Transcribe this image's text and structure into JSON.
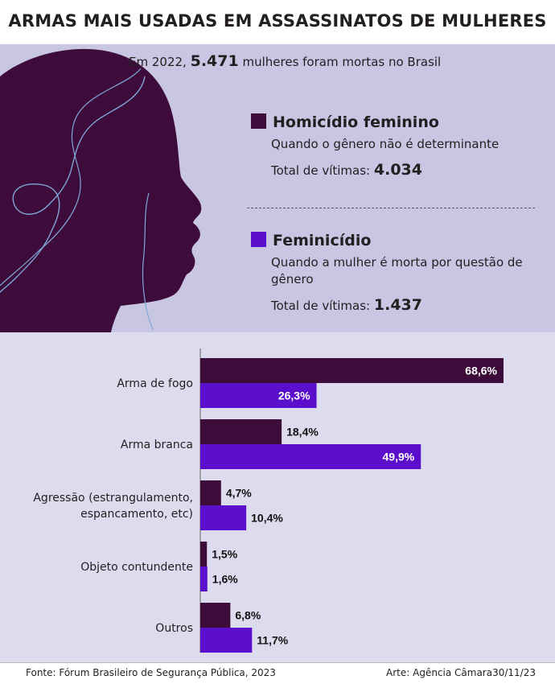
{
  "title": "ARMAS MAIS USADAS EM ASSASSINATOS DE MULHERES",
  "intro": {
    "prefix": "Em 2022,",
    "number": "5.471",
    "suffix": "mulheres foram mortas no Brasil"
  },
  "categories_info": [
    {
      "name": "Homicídio feminino",
      "desc": "Quando o gênero não é determinante",
      "total_label": "Total de vítimas:",
      "total": "4.034",
      "color": "#3d0c3a"
    },
    {
      "name": "Feminicídio",
      "desc": "Quando a mulher é morta por questão de gênero",
      "total_label": "Total de vítimas:",
      "total": "1.437",
      "color": "#5b0fcc"
    }
  ],
  "chart_data": {
    "type": "bar",
    "orientation": "horizontal",
    "categories": [
      "Arma de fogo",
      "Arma branca",
      "Agressão (estrangulamento,\nespancamento, etc)",
      "Objeto contundente",
      "Outros"
    ],
    "series": [
      {
        "name": "Homicídio feminino",
        "values": [
          68.6,
          18.4,
          4.7,
          1.5,
          6.8
        ],
        "labels": [
          "68,6%",
          "18,4%",
          "4,7%",
          "1,5%",
          "6,8%"
        ],
        "color": "#3d0c3a"
      },
      {
        "name": "Feminicídio",
        "values": [
          26.3,
          49.9,
          10.4,
          1.6,
          11.7
        ],
        "labels": [
          "26,3%",
          "49,9%",
          "10,4%",
          "1,6%",
          "11,7%"
        ],
        "color": "#5b0fcc"
      }
    ],
    "xlim": [
      0,
      75
    ]
  },
  "footer": {
    "source": "Fonte: Fórum Brasileiro de Segurança Pública, 2023",
    "credit": "Arte: Agência Câmara30/11/23"
  }
}
